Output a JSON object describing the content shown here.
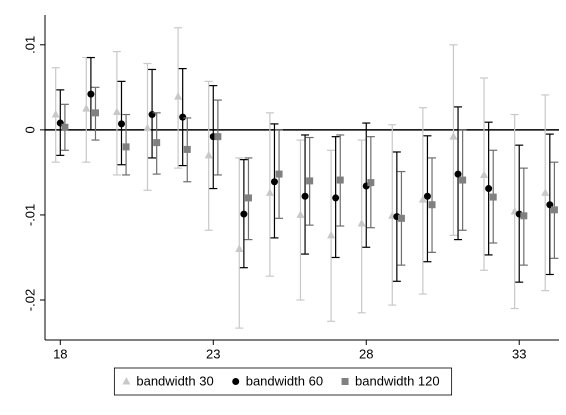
{
  "chart_data": {
    "type": "errorbar",
    "x": [
      18,
      19,
      20,
      21,
      22,
      23,
      24,
      25,
      26,
      27,
      28,
      29,
      30,
      31,
      32,
      33,
      34
    ],
    "series": [
      {
        "name": "bandwidth 30",
        "color": "#c8c8c8",
        "ci_color": "#c8c8c8",
        "marker": "triangle",
        "values": [
          0.0018,
          0.0025,
          0.0021,
          0.0002,
          0.0039,
          -0.003,
          -0.014,
          -0.0074,
          -0.01,
          -0.0124,
          -0.011,
          -0.0101,
          -0.0082,
          -0.0008,
          -0.0053,
          -0.0096,
          -0.0074
        ],
        "lower": [
          -0.0038,
          -0.0038,
          -0.0053,
          -0.0071,
          -0.0045,
          -0.0118,
          -0.0233,
          -0.0172,
          -0.02,
          -0.0225,
          -0.0215,
          -0.0206,
          -0.0193,
          -0.0124,
          -0.0165,
          -0.021,
          -0.0189
        ],
        "upper": [
          0.0073,
          0.0085,
          0.0092,
          0.0078,
          0.012,
          0.0057,
          -0.0033,
          0.002,
          -0.0012,
          -0.0024,
          -0.0012,
          0.0006,
          0.0026,
          0.01,
          0.0061,
          0.0018,
          0.0041
        ]
      },
      {
        "name": "bandwidth 60",
        "color": "#000000",
        "ci_color": "#000000",
        "marker": "circle",
        "values": [
          0.0008,
          0.0042,
          0.0007,
          0.0018,
          0.0015,
          -0.0008,
          -0.0099,
          -0.0061,
          -0.0078,
          -0.008,
          -0.0066,
          -0.0102,
          -0.0078,
          -0.0052,
          -0.0069,
          -0.0099,
          -0.0088
        ],
        "lower": [
          -0.003,
          0,
          -0.0041,
          -0.0033,
          -0.0042,
          -0.0069,
          -0.0162,
          -0.0127,
          -0.0146,
          -0.015,
          -0.0138,
          -0.0178,
          -0.0155,
          -0.0129,
          -0.0147,
          -0.0179,
          -0.017
        ],
        "upper": [
          0.0047,
          0.0085,
          0.0057,
          0.0071,
          0.0072,
          0.0052,
          -0.0035,
          0.0007,
          -0.0006,
          -0.0008,
          0.0008,
          -0.0026,
          -0.0007,
          0.0027,
          0.0009,
          -0.0018,
          -0.0005
        ]
      },
      {
        "name": "bandwidth 120",
        "color": "#808080",
        "ci_color": "#6e6e6e",
        "marker": "square",
        "values": [
          0.0003,
          0.002,
          -0.002,
          -0.0015,
          -0.0023,
          -0.0008,
          -0.008,
          -0.0052,
          -0.006,
          -0.0059,
          -0.0062,
          -0.0104,
          -0.0088,
          -0.0059,
          -0.0079,
          -0.0101,
          -0.0094
        ],
        "lower": [
          -0.0024,
          -0.0012,
          -0.0053,
          -0.0052,
          -0.0061,
          -0.0053,
          -0.0129,
          -0.0104,
          -0.0112,
          -0.0113,
          -0.0115,
          -0.0159,
          -0.0144,
          -0.0118,
          -0.0133,
          -0.0159,
          -0.0151
        ],
        "upper": [
          0.003,
          0.005,
          0.0018,
          0.002,
          0.0014,
          0.0035,
          -0.0033,
          0,
          -0.0009,
          -0.0006,
          -0.0008,
          -0.0049,
          -0.0033,
          0,
          -0.0024,
          -0.0045,
          -0.0038
        ]
      }
    ],
    "xlim": [
      17.5,
      34.3
    ],
    "xticks": [
      18,
      23,
      28,
      33
    ],
    "ylim": [
      -0.0247,
      0.0135
    ],
    "yticks": [
      {
        "value": -0.02,
        "label": "-.02"
      },
      {
        "value": -0.01,
        "label": "-.01"
      },
      0,
      {
        "value": 0.01,
        "label": ".01"
      }
    ],
    "reference_line": 0,
    "legend": "bottom",
    "grid": false
  }
}
